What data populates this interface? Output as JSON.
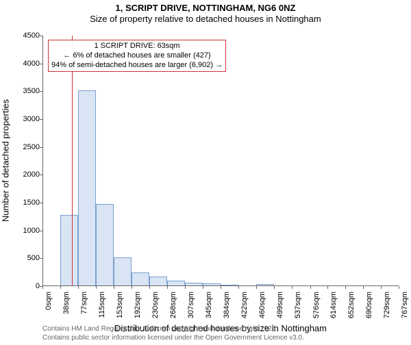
{
  "title": "1, SCRIPT DRIVE, NOTTINGHAM, NG6 0NZ",
  "subtitle": "Size of property relative to detached houses in Nottingham",
  "chart": {
    "type": "histogram",
    "ylabel": "Number of detached properties",
    "xlabel": "Distribution of detached houses by size in Nottingham",
    "ylim": [
      0,
      4500
    ],
    "yticks": [
      0,
      500,
      1000,
      1500,
      2000,
      2500,
      3000,
      3500,
      4000,
      4500
    ],
    "xtick_labels": [
      "0sqm",
      "38sqm",
      "77sqm",
      "115sqm",
      "153sqm",
      "192sqm",
      "230sqm",
      "268sqm",
      "307sqm",
      "345sqm",
      "384sqm",
      "422sqm",
      "460sqm",
      "499sqm",
      "537sqm",
      "576sqm",
      "614sqm",
      "652sqm",
      "690sqm",
      "729sqm",
      "767sqm"
    ],
    "xtick_values": [
      0,
      38,
      77,
      115,
      153,
      192,
      230,
      268,
      307,
      345,
      384,
      422,
      460,
      499,
      537,
      576,
      614,
      652,
      690,
      729,
      767
    ],
    "x_max": 767,
    "bar_color": "#d9e4f5",
    "bar_border": "#7aa0d0",
    "background_color": "#ffffff",
    "axis_color": "#666666",
    "bars": [
      {
        "x0": 38,
        "x1": 77,
        "value": 1280
      },
      {
        "x0": 77,
        "x1": 115,
        "value": 3520
      },
      {
        "x0": 115,
        "x1": 153,
        "value": 1470
      },
      {
        "x0": 153,
        "x1": 192,
        "value": 520
      },
      {
        "x0": 192,
        "x1": 230,
        "value": 250
      },
      {
        "x0": 230,
        "x1": 268,
        "value": 170
      },
      {
        "x0": 268,
        "x1": 307,
        "value": 100
      },
      {
        "x0": 307,
        "x1": 345,
        "value": 60
      },
      {
        "x0": 345,
        "x1": 384,
        "value": 50
      },
      {
        "x0": 384,
        "x1": 422,
        "value": 30
      },
      {
        "x0": 422,
        "x1": 460,
        "value": 0
      },
      {
        "x0": 460,
        "x1": 499,
        "value": 40
      },
      {
        "x0": 499,
        "x1": 537,
        "value": 0
      },
      {
        "x0": 537,
        "x1": 576,
        "value": 0
      },
      {
        "x0": 576,
        "x1": 614,
        "value": 0
      },
      {
        "x0": 614,
        "x1": 652,
        "value": 0
      },
      {
        "x0": 652,
        "x1": 690,
        "value": 0
      },
      {
        "x0": 690,
        "x1": 729,
        "value": 0
      },
      {
        "x0": 729,
        "x1": 767,
        "value": 0
      }
    ],
    "marker_line": {
      "x": 63,
      "color": "#cc3333"
    },
    "annotation": {
      "border_color": "#cc3333",
      "lines": [
        "1 SCRIPT DRIVE: 63sqm",
        "← 6% of detached houses are smaller (427)",
        "94% of semi-detached houses are larger (6,902) →"
      ]
    },
    "label_fontsize": 13,
    "tick_fontsize": 11,
    "annotation_fontsize": 11
  },
  "footer": {
    "line1": "Contains HM Land Registry data © Crown copyright and database right 2025.",
    "line2": "Contains public sector information licensed under the Open Government Licence v3.0."
  }
}
